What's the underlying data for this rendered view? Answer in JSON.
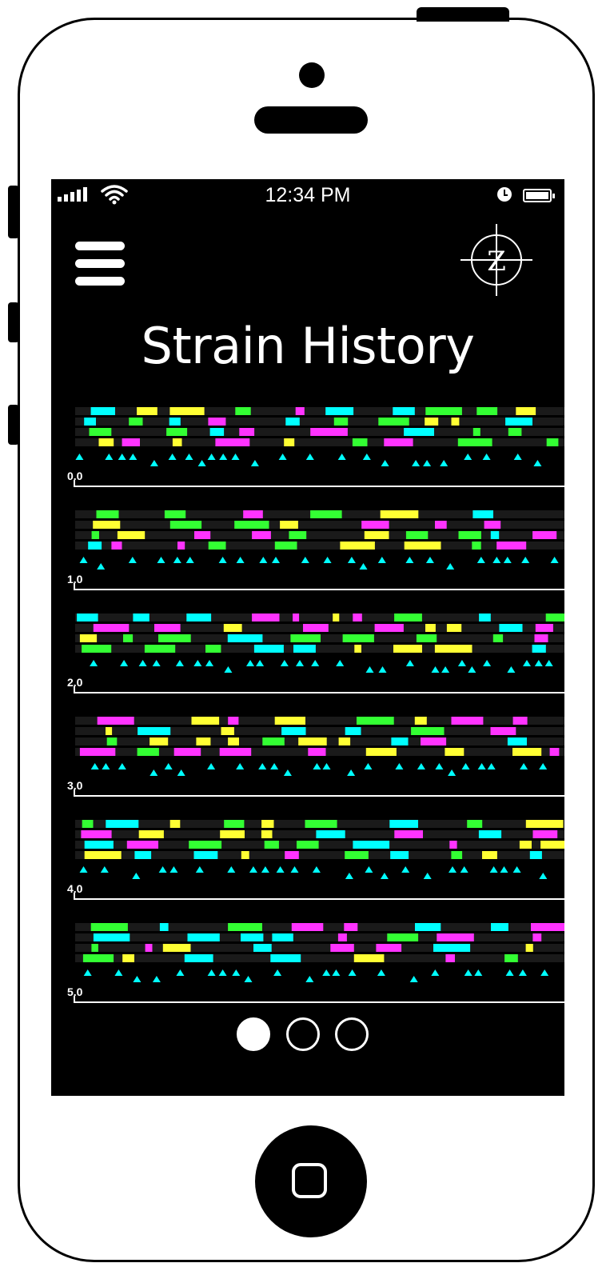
{
  "status_bar": {
    "time": "12:34 PM",
    "signal_icon": "signal-bars-icon",
    "wifi_icon": "wifi-icon",
    "alarm_icon": "clock-icon",
    "battery_icon": "battery-icon"
  },
  "header": {
    "menu_icon": "hamburger-menu-icon",
    "logo_icon": "crosshair-z-logo-icon",
    "logo_letter": "Z",
    "title": "Strain History"
  },
  "colors": {
    "background": "#000000",
    "cyan": "#00ffff",
    "magenta": "#ff33ff",
    "yellow": "#ffff33",
    "green": "#33ff33",
    "white": "#ffffff"
  },
  "timeline": {
    "rows": [
      {
        "label": "0.0"
      },
      {
        "label": "1.0"
      },
      {
        "label": "2.0"
      },
      {
        "label": "3.0"
      },
      {
        "label": "4.0"
      },
      {
        "label": "5.0"
      }
    ]
  },
  "pager": {
    "pages": 3,
    "active_index": 0
  }
}
